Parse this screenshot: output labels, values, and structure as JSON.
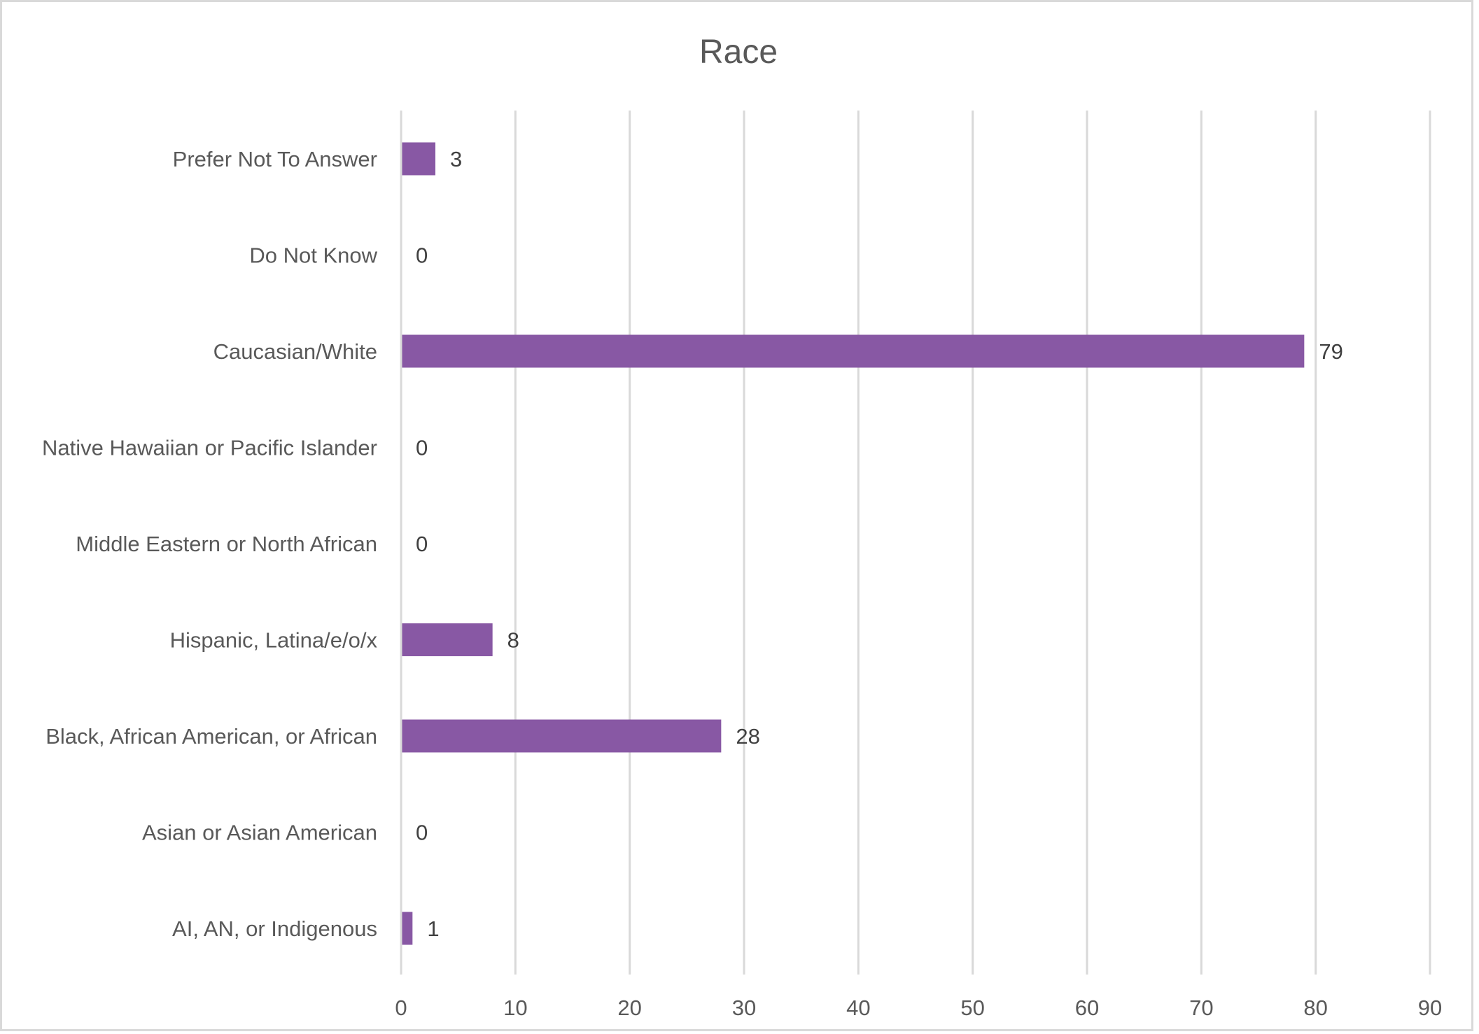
{
  "chart_data": {
    "type": "bar",
    "orientation": "horizontal",
    "title": "Race",
    "categories": [
      "Prefer Not To Answer",
      "Do Not Know",
      "Caucasian/White",
      "Native Hawaiian or Pacific Islander",
      "Middle Eastern or North African",
      "Hispanic, Latina/e/o/x",
      "Black, African American, or African",
      "Asian or Asian American",
      "AI, AN, or Indigenous"
    ],
    "values": [
      3,
      0,
      79,
      0,
      0,
      8,
      28,
      0,
      1
    ],
    "data_labels": [
      "3",
      "0",
      "79",
      "0",
      "0",
      "8",
      "28",
      "0",
      "1"
    ],
    "xlim": [
      0,
      90
    ],
    "x_ticks": [
      0,
      10,
      20,
      30,
      40,
      50,
      60,
      70,
      80,
      90
    ],
    "x_tick_labels": [
      "0",
      "10",
      "20",
      "30",
      "40",
      "50",
      "60",
      "70",
      "80",
      "90"
    ],
    "grid": "vertical",
    "legend": "none",
    "bar_color": "#8858a4",
    "xlabel": "",
    "ylabel": ""
  }
}
